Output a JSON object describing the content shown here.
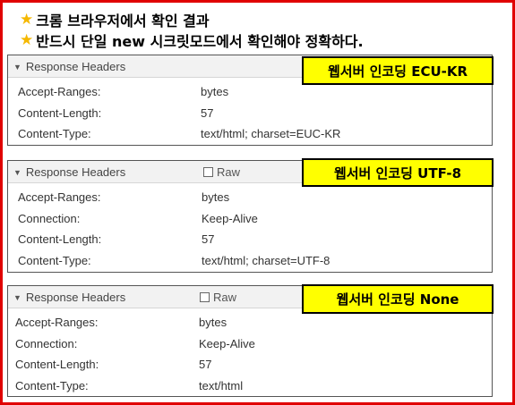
{
  "notes": [
    {
      "icon": "star-icon",
      "text": "크롬 브라우저에서 확인 결과"
    },
    {
      "icon": "star-icon",
      "text": "반드시 단일 new 시크릿모드에서 확인해야 정확하다."
    }
  ],
  "panels": [
    {
      "header": "Response Headers",
      "raw_label": "",
      "tag": "웹서버 인코딩 ECU-KR",
      "rows": [
        {
          "key": "Accept-Ranges:",
          "value": "bytes"
        },
        {
          "key": "Content-Length:",
          "value": "57"
        },
        {
          "key": "Content-Type:",
          "value": "text/html; charset=EUC-KR"
        }
      ]
    },
    {
      "header": "Response Headers",
      "raw_label": "Raw",
      "tag": "웹서버 인코딩 UTF-8",
      "rows": [
        {
          "key": "Accept-Ranges:",
          "value": "bytes"
        },
        {
          "key": "Connection:",
          "value": "Keep-Alive"
        },
        {
          "key": "Content-Length:",
          "value": "57"
        },
        {
          "key": "Content-Type:",
          "value": "text/html; charset=UTF-8"
        }
      ]
    },
    {
      "header": "Response Headers",
      "raw_label": "Raw",
      "tag": "웹서버 인코딩 None",
      "rows": [
        {
          "key": "Accept-Ranges:",
          "value": "bytes"
        },
        {
          "key": "Connection:",
          "value": "Keep-Alive"
        },
        {
          "key": "Content-Length:",
          "value": "57"
        },
        {
          "key": "Content-Type:",
          "value": "text/html"
        }
      ]
    }
  ],
  "colors": {
    "frame": "#e00000",
    "tag_bg": "#ffff00",
    "star": "#f5b800"
  }
}
